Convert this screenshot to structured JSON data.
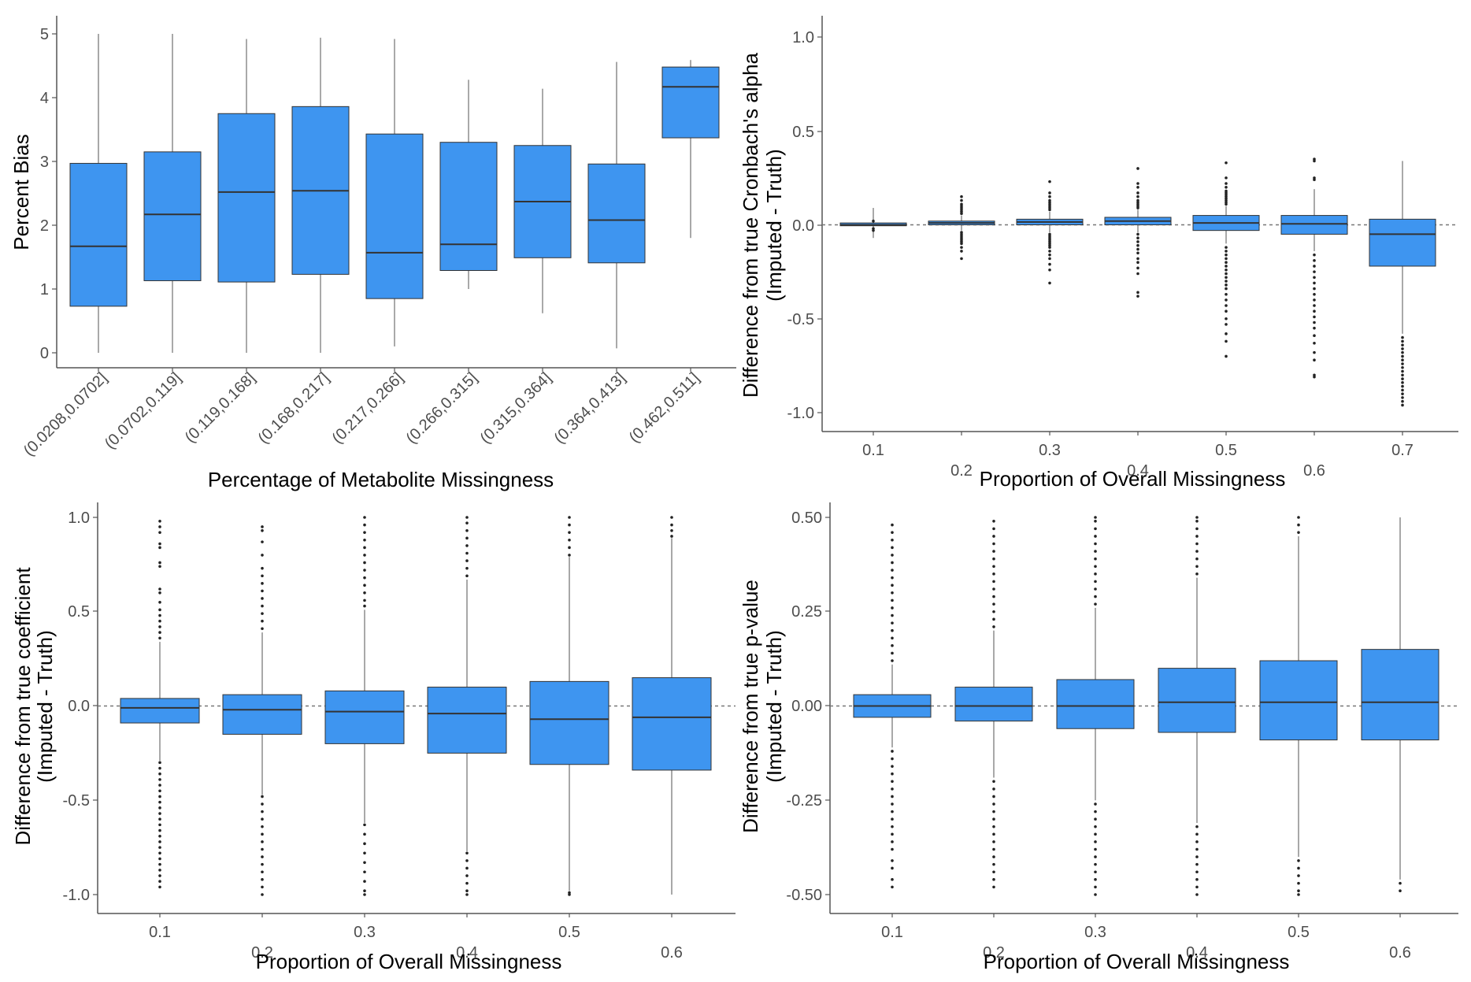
{
  "colors": {
    "box_fill": "#3e95f0",
    "box_stroke": "#333333",
    "whisker": "#8c8c8c",
    "outlier": "#222222",
    "zero_line": "#777777"
  },
  "chart_data": [
    {
      "type": "boxplot",
      "title": "",
      "xlabel": "Percentage of Metabolite Missingness",
      "ylabel": "Percent Bias",
      "ylim": [
        -0.25,
        5.1
      ],
      "yticks": [
        0,
        1,
        2,
        3,
        4,
        5
      ],
      "categories": [
        "(0.0208,0.0702]",
        "(0.0702,0.119]",
        "(0.119,0.168]",
        "(0.168,0.217]",
        "(0.217,0.266]",
        "(0.266,0.315]",
        "(0.315,0.364]",
        "(0.364,0.413]",
        "(0.462,0.511]"
      ],
      "boxes": [
        {
          "min": 0.0,
          "q1": 0.73,
          "median": 1.67,
          "q3": 2.97,
          "max": 5.0
        },
        {
          "min": 0.0,
          "q1": 1.13,
          "median": 2.17,
          "q3": 3.15,
          "max": 5.0
        },
        {
          "min": 0.0,
          "q1": 1.11,
          "median": 2.52,
          "q3": 3.75,
          "max": 4.92
        },
        {
          "min": 0.0,
          "q1": 1.23,
          "median": 2.54,
          "q3": 3.86,
          "max": 4.94
        },
        {
          "min": 0.1,
          "q1": 0.85,
          "median": 1.57,
          "q3": 3.43,
          "max": 4.92
        },
        {
          "min": 1.0,
          "q1": 1.29,
          "median": 1.7,
          "q3": 3.3,
          "max": 4.28
        },
        {
          "min": 0.62,
          "q1": 1.49,
          "median": 2.37,
          "q3": 3.25,
          "max": 4.14
        },
        {
          "min": 0.07,
          "q1": 1.41,
          "median": 2.08,
          "q3": 2.96,
          "max": 4.56
        },
        {
          "min": 1.8,
          "q1": 3.37,
          "median": 4.17,
          "q3": 4.48,
          "max": 4.59
        }
      ]
    },
    {
      "type": "boxplot",
      "title": "",
      "xlabel": "Proportion of Overall Missingness",
      "ylabel": "Difference from true Cronbach's alpha",
      "ylabel2": "(Imputed - Truth)",
      "ylim": [
        -1.1,
        1.1
      ],
      "yticks": [
        "1.0",
        "0.5",
        "0.0",
        "-0.5",
        "-1.0"
      ],
      "zero_line": true,
      "categories": [
        "0.1",
        "0.2",
        "0.3",
        "0.4",
        "0.5",
        "0.6",
        "0.7"
      ],
      "boxes": [
        {
          "min": -0.07,
          "q1": -0.005,
          "median": 0.0,
          "q3": 0.01,
          "max": 0.09,
          "outliers_low": [
            -0.02,
            -0.03
          ],
          "outliers_high": [
            0.02
          ]
        },
        {
          "min": -0.03,
          "q1": 0.0,
          "median": 0.01,
          "q3": 0.02,
          "max": 0.05,
          "outliers_low": [
            -0.04,
            -0.05,
            -0.06,
            -0.07,
            -0.08,
            -0.09,
            -0.1,
            -0.12,
            -0.14,
            -0.18
          ],
          "outliers_high": [
            0.06,
            0.07,
            0.08,
            0.09,
            0.1,
            0.11,
            0.13,
            0.15
          ]
        },
        {
          "min": -0.04,
          "q1": 0.0,
          "median": 0.015,
          "q3": 0.03,
          "max": 0.07,
          "outliers_low": [
            -0.05,
            -0.06,
            -0.07,
            -0.08,
            -0.09,
            -0.1,
            -0.11,
            -0.12,
            -0.14,
            -0.16,
            -0.18,
            -0.21,
            -0.24,
            -0.31
          ],
          "outliers_high": [
            0.08,
            0.09,
            0.1,
            0.11,
            0.12,
            0.13,
            0.15,
            0.17,
            0.23
          ]
        },
        {
          "min": -0.04,
          "q1": 0.0,
          "median": 0.02,
          "q3": 0.04,
          "max": 0.08,
          "outliers_low": [
            -0.05,
            -0.07,
            -0.09,
            -0.11,
            -0.13,
            -0.15,
            -0.18,
            -0.2,
            -0.23,
            -0.26,
            -0.36,
            -0.38
          ],
          "outliers_high": [
            0.09,
            0.1,
            0.11,
            0.12,
            0.13,
            0.15,
            0.17,
            0.2,
            0.22,
            0.3
          ]
        },
        {
          "min": -0.1,
          "q1": -0.03,
          "median": 0.01,
          "q3": 0.05,
          "max": 0.1,
          "outliers_low": [
            -0.12,
            -0.14,
            -0.16,
            -0.18,
            -0.2,
            -0.22,
            -0.24,
            -0.26,
            -0.28,
            -0.3,
            -0.32,
            -0.34,
            -0.37,
            -0.4,
            -0.43,
            -0.46,
            -0.5,
            -0.53,
            -0.58,
            -0.62,
            -0.7
          ],
          "outliers_high": [
            0.11,
            0.12,
            0.13,
            0.14,
            0.15,
            0.16,
            0.17,
            0.18,
            0.2,
            0.22,
            0.25,
            0.33
          ]
        },
        {
          "min": -0.14,
          "q1": -0.05,
          "median": 0.005,
          "q3": 0.05,
          "max": 0.19,
          "outliers_low": [
            -0.16,
            -0.19,
            -0.22,
            -0.25,
            -0.28,
            -0.31,
            -0.34,
            -0.37,
            -0.4,
            -0.43,
            -0.46,
            -0.49,
            -0.52,
            -0.55,
            -0.59,
            -0.63,
            -0.68,
            -0.72,
            -0.8,
            -0.81
          ],
          "outliers_high": [
            0.24,
            0.25,
            0.34,
            0.35
          ]
        },
        {
          "min": -0.58,
          "q1": -0.22,
          "median": -0.05,
          "q3": 0.03,
          "max": 0.34,
          "outliers_low": [
            -0.6,
            -0.62,
            -0.64,
            -0.66,
            -0.68,
            -0.7,
            -0.72,
            -0.74,
            -0.76,
            -0.78,
            -0.8,
            -0.82,
            -0.84,
            -0.86,
            -0.88,
            -0.9,
            -0.92,
            -0.94,
            -0.96
          ],
          "outliers_high": []
        }
      ]
    },
    {
      "type": "boxplot",
      "title": "",
      "xlabel": "Proportion of Overall Missingness",
      "ylabel": "Difference from true coefficient",
      "ylabel2": "(Imputed - Truth)",
      "ylim": [
        -1.06,
        1.06
      ],
      "yticks": [
        "1.0",
        "0.5",
        "0.0",
        "-0.5",
        "-1.0"
      ],
      "zero_line": true,
      "categories": [
        "0.1",
        "0.2",
        "0.3",
        "0.4",
        "0.5",
        "0.6"
      ],
      "boxes": [
        {
          "min": -0.29,
          "q1": -0.09,
          "median": -0.01,
          "q3": 0.04,
          "max": 0.34,
          "outliers_low": [
            -0.3,
            -0.33,
            -0.36,
            -0.39,
            -0.42,
            -0.45,
            -0.48,
            -0.51,
            -0.54,
            -0.57,
            -0.6,
            -0.63,
            -0.66,
            -0.69,
            -0.72,
            -0.75,
            -0.78,
            -0.81,
            -0.84,
            -0.87,
            -0.9,
            -0.93,
            -0.96
          ],
          "outliers_high": [
            0.36,
            0.39,
            0.42,
            0.45,
            0.48,
            0.51,
            0.55,
            0.6,
            0.62,
            0.74,
            0.76,
            0.84,
            0.86,
            0.92,
            0.95,
            0.98
          ]
        },
        {
          "min": -0.47,
          "q1": -0.15,
          "median": -0.02,
          "q3": 0.06,
          "max": 0.39,
          "outliers_low": [
            -0.48,
            -0.52,
            -0.56,
            -0.6,
            -0.64,
            -0.68,
            -0.72,
            -0.76,
            -0.8,
            -0.84,
            -0.88,
            -0.92,
            -0.96,
            -1.0
          ],
          "outliers_high": [
            0.41,
            0.45,
            0.49,
            0.53,
            0.57,
            0.61,
            0.65,
            0.69,
            0.73,
            0.8,
            0.87,
            0.93,
            0.95
          ]
        },
        {
          "min": -0.62,
          "q1": -0.2,
          "median": -0.03,
          "q3": 0.08,
          "max": 0.51,
          "outliers_low": [
            -0.63,
            -0.68,
            -0.73,
            -0.78,
            -0.83,
            -0.88,
            -0.93,
            -0.98,
            -1.0
          ],
          "outliers_high": [
            0.53,
            0.56,
            0.6,
            0.64,
            0.68,
            0.72,
            0.76,
            0.8,
            0.84,
            0.88,
            0.92,
            0.96,
            1.0
          ]
        },
        {
          "min": -0.77,
          "q1": -0.25,
          "median": -0.04,
          "q3": 0.1,
          "max": 0.67,
          "outliers_low": [
            -0.78,
            -0.82,
            -0.86,
            -0.9,
            -0.94,
            -0.98,
            -1.0
          ],
          "outliers_high": [
            0.69,
            0.73,
            0.77,
            0.81,
            0.85,
            0.89,
            0.93,
            0.97,
            1.0
          ]
        },
        {
          "min": -0.98,
          "q1": -0.31,
          "median": -0.07,
          "q3": 0.13,
          "max": 0.79,
          "outliers_low": [
            -0.99,
            -1.0
          ],
          "outliers_high": [
            0.8,
            0.84,
            0.88,
            0.92,
            0.96,
            1.0
          ]
        },
        {
          "min": -1.0,
          "q1": -0.34,
          "median": -0.06,
          "q3": 0.15,
          "max": 0.89,
          "outliers_low": [],
          "outliers_high": [
            0.9,
            0.93,
            0.96,
            1.0
          ]
        }
      ]
    },
    {
      "type": "boxplot",
      "title": "",
      "xlabel": "Proportion of Overall Missingness",
      "ylabel": "Difference from true p-value",
      "ylabel2": "(Imputed - Truth)",
      "ylim": [
        -0.53,
        0.53
      ],
      "yticks": [
        "0.50",
        "0.25",
        "0.00",
        "-0.25",
        "-0.50"
      ],
      "zero_line": true,
      "categories": [
        "0.1",
        "0.2",
        "0.3",
        "0.4",
        "0.5",
        "0.6"
      ],
      "boxes": [
        {
          "min": -0.11,
          "q1": -0.03,
          "median": 0.0,
          "q3": 0.03,
          "max": 0.11,
          "outliers_low": [
            -0.12,
            -0.14,
            -0.16,
            -0.18,
            -0.2,
            -0.22,
            -0.24,
            -0.26,
            -0.28,
            -0.3,
            -0.32,
            -0.34,
            -0.36,
            -0.38,
            -0.41,
            -0.43,
            -0.46,
            -0.48
          ],
          "outliers_high": [
            0.12,
            0.14,
            0.16,
            0.18,
            0.2,
            0.22,
            0.24,
            0.26,
            0.28,
            0.3,
            0.32,
            0.34,
            0.36,
            0.38,
            0.4,
            0.42,
            0.44,
            0.46,
            0.48
          ]
        },
        {
          "min": -0.19,
          "q1": -0.04,
          "median": 0.0,
          "q3": 0.05,
          "max": 0.2,
          "outliers_low": [
            -0.2,
            -0.22,
            -0.24,
            -0.26,
            -0.28,
            -0.3,
            -0.32,
            -0.34,
            -0.36,
            -0.38,
            -0.4,
            -0.42,
            -0.44,
            -0.46,
            -0.48
          ],
          "outliers_high": [
            0.21,
            0.23,
            0.25,
            0.27,
            0.29,
            0.31,
            0.33,
            0.35,
            0.37,
            0.39,
            0.41,
            0.43,
            0.45,
            0.47,
            0.49
          ]
        },
        {
          "min": -0.25,
          "q1": -0.06,
          "median": 0.0,
          "q3": 0.07,
          "max": 0.26,
          "outliers_low": [
            -0.26,
            -0.28,
            -0.3,
            -0.32,
            -0.34,
            -0.36,
            -0.38,
            -0.4,
            -0.42,
            -0.44,
            -0.46,
            -0.48,
            -0.5
          ],
          "outliers_high": [
            0.27,
            0.29,
            0.31,
            0.33,
            0.35,
            0.37,
            0.39,
            0.41,
            0.43,
            0.45,
            0.47,
            0.49,
            0.5
          ]
        },
        {
          "min": -0.31,
          "q1": -0.07,
          "median": 0.01,
          "q3": 0.1,
          "max": 0.34,
          "outliers_low": [
            -0.32,
            -0.34,
            -0.36,
            -0.38,
            -0.4,
            -0.42,
            -0.44,
            -0.46,
            -0.48,
            -0.5
          ],
          "outliers_high": [
            0.35,
            0.37,
            0.39,
            0.41,
            0.43,
            0.45,
            0.47,
            0.49,
            0.5
          ]
        },
        {
          "min": -0.4,
          "q1": -0.09,
          "median": 0.01,
          "q3": 0.12,
          "max": 0.45,
          "outliers_low": [
            -0.41,
            -0.43,
            -0.45,
            -0.47,
            -0.49,
            -0.5
          ],
          "outliers_high": [
            0.46,
            0.48,
            0.5
          ]
        },
        {
          "min": -0.46,
          "q1": -0.09,
          "median": 0.01,
          "q3": 0.15,
          "max": 0.5,
          "outliers_low": [
            -0.47,
            -0.49
          ],
          "outliers_high": []
        }
      ]
    }
  ]
}
